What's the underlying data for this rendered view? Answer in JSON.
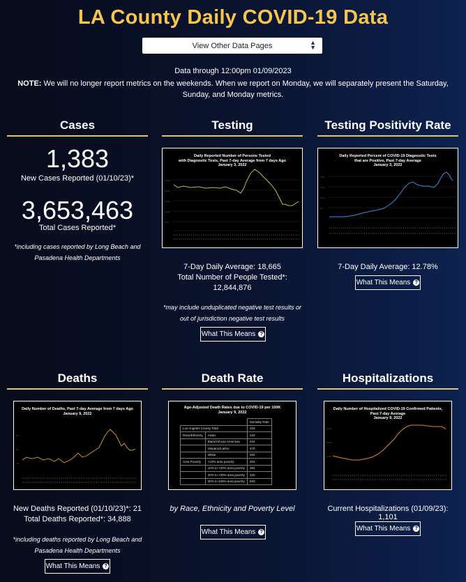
{
  "header": {
    "title": "LA County Daily COVID-19 Data",
    "select_label": "View Other Data Pages",
    "data_through": "Data through 12:00pm 01/09/2023",
    "note_bold": "NOTE:",
    "note_text": " We will no longer report metrics on the weekends. When we report on Monday, we will separately present the Saturday, Sunday, and Monday metrics."
  },
  "cases": {
    "heading": "Cases",
    "new_value": "1,383",
    "new_label": "New Cases Reported (01/10/23)*",
    "total_value": "3,653,463",
    "total_label": "Total Cases Reported*",
    "footnote": "*including cases reported by Long Beach and Pasadena Health Departments"
  },
  "testing": {
    "heading": "Testing",
    "chart_title": "Daily Reported Number of Persons Tested\nwith Diagnostic Tests, Past 7-day Average from 7 days Ago\nJanuary 3, 2022",
    "avg": "7-Day Daily Average: 18,665",
    "total_label": "Total Number of People Tested*:",
    "total_value": "12,844,876",
    "footnote": "*may include unduplicated negative test results or out of jurisdiction negative test results",
    "button": "What This Means"
  },
  "positivity": {
    "heading": "Testing Positivity Rate",
    "chart_title": "Daily Reported Percent of COVID-19 Diagnostic Tests\nthat are Positive, Past 7-day Average\nJanuary 3, 2022",
    "avg": "7-Day Daily Average: 12.78%",
    "button": "What This Means"
  },
  "deaths": {
    "heading": "Deaths",
    "chart_title": "Daily Number of Deaths, Past 7-day Average from 7 days Ago\nJanuary 9, 2022",
    "new_label": "New Deaths Reported (01/10/23)*: 21",
    "total_label": "Total Deaths Reported*: 34,888",
    "footnote": "*including deaths reported by Long Beach and Pasadena Health Departments",
    "button": "What This Means"
  },
  "death_rate": {
    "heading": "Death Rate",
    "chart_title": "Age-Adjusted Death Rates due to COVID-19 per 100K\nJanuary 9, 2022",
    "caption": "by Race, Ethnicity and Poverty Level",
    "button": "What This Means",
    "table": {
      "col_header": "Mortality Rate",
      "total_label": "Los Angeles County Total",
      "total_value": "318",
      "rows": [
        {
          "group": "Race/Ethnicity",
          "sub": "Asian",
          "value": "233"
        },
        {
          "group": "",
          "sub": "Black/African American",
          "value": "342"
        },
        {
          "group": "",
          "sub": "Hispanic/Latino",
          "value": "470"
        },
        {
          "group": "",
          "sub": "White",
          "value": "302"
        },
        {
          "group": "Area Poverty",
          "sub": "<10% area poverty",
          "value": "204"
        },
        {
          "group": "",
          "sub": "10% to <20% area poverty",
          "value": "283"
        },
        {
          "group": "",
          "sub": "20% to <30% area poverty",
          "value": "420"
        },
        {
          "group": "",
          "sub": "30% to 100% area poverty",
          "value": "503"
        }
      ]
    }
  },
  "hospitalizations": {
    "heading": "Hospitalizations",
    "chart_title": "Daily Number of Hospitalized COVID-19 Confirmed Patients,\nPast 7-day Average\nJanuary 9, 2022",
    "current_label": "Current Hospitalizations (01/09/23): 1,101",
    "button": "What This Means"
  },
  "colors": {
    "accent": "#f6c54f",
    "rule": "#e6c36a",
    "testing_line": "#b5c53a",
    "positivity_line": "#3a8ee6",
    "deaths_line": "#d8a51a",
    "hosp_line": "#e8861e"
  }
}
